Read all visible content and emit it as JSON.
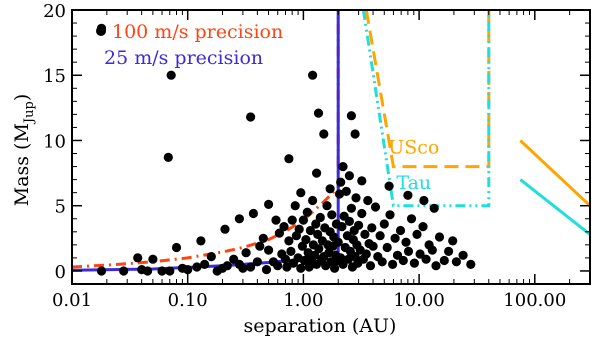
{
  "chart_data": {
    "type": "scatter",
    "xscale": "log",
    "xlabel": "separation (AU)",
    "ylabel_main": "Mass (M",
    "ylabel_sub": "Jup",
    "ylabel_close": ")",
    "xlim": [
      0.01,
      300
    ],
    "ylim": [
      -1,
      20
    ],
    "xticks": [
      0.01,
      0.1,
      1,
      10,
      100
    ],
    "xtick_labels": [
      "0.01",
      "0.10",
      "1.00",
      "10.00",
      "100.00"
    ],
    "yticks": [
      0,
      5,
      10,
      15,
      20
    ],
    "ytick_labels": [
      "0",
      "5",
      "10",
      "15",
      "20"
    ],
    "grid": false,
    "colors": {
      "points": "#000000",
      "rv100": "#ff4411",
      "rv25": "#3d2bd8",
      "usco": "#ffa500",
      "tau": "#22dddd"
    },
    "legend": [
      {
        "label": "100 m/s precision",
        "color": "#ff4411"
      },
      {
        "label": "25 m/s precision",
        "color": "#3d2bd8"
      }
    ],
    "annotations": [
      {
        "label": "USco",
        "x": 9.0,
        "y": 9.0,
        "color": "#ffa500"
      },
      {
        "label": "Tau",
        "x": 9.0,
        "y": 6.3,
        "color": "#22dddd"
      }
    ],
    "curves": [
      {
        "key": "rv100",
        "style": "dashdot",
        "width": 3,
        "points": [
          [
            0.01,
            0.3
          ],
          [
            0.02,
            0.45
          ],
          [
            0.05,
            0.7
          ],
          [
            0.1,
            1.0
          ],
          [
            0.2,
            1.45
          ],
          [
            0.3,
            1.8
          ],
          [
            0.5,
            2.4
          ],
          [
            0.7,
            3.05
          ],
          [
            1.0,
            3.9
          ],
          [
            1.5,
            5.3
          ],
          [
            2.0,
            6.4
          ],
          [
            2.0,
            20
          ]
        ]
      },
      {
        "key": "rv25",
        "style": "solid",
        "width": 3,
        "points": [
          [
            0.01,
            0.05
          ],
          [
            0.05,
            0.15
          ],
          [
            0.1,
            0.27
          ],
          [
            0.2,
            0.4
          ],
          [
            0.5,
            0.65
          ],
          [
            1.0,
            0.9
          ],
          [
            1.5,
            1.15
          ],
          [
            2.0,
            1.5
          ],
          [
            2.0,
            20
          ]
        ]
      },
      {
        "key": "usco",
        "style": "dashed",
        "width": 3,
        "points": [
          [
            3.5,
            20
          ],
          [
            6.0,
            8.0
          ],
          [
            40,
            8.0
          ],
          [
            40,
            20
          ]
        ]
      },
      {
        "key": "tau",
        "style": "dashdotdot",
        "width": 3,
        "points": [
          [
            3.3,
            20
          ],
          [
            6.0,
            5.0
          ],
          [
            40,
            5.0
          ],
          [
            40,
            20
          ]
        ]
      },
      {
        "key": "usco",
        "style": "solid",
        "width": 3,
        "points": [
          [
            75,
            10.0
          ],
          [
            300,
            5.0
          ]
        ]
      },
      {
        "key": "tau",
        "style": "solid",
        "width": 3,
        "points": [
          [
            75,
            7.0
          ],
          [
            300,
            2.8
          ]
        ]
      }
    ],
    "points": [
      [
        0.018,
        18.6
      ],
      [
        0.072,
        15.0
      ],
      [
        0.068,
        8.7
      ],
      [
        0.35,
        11.8
      ],
      [
        1.2,
        15.0
      ],
      [
        1.35,
        12.1
      ],
      [
        1.5,
        10.5
      ],
      [
        0.75,
        8.6
      ],
      [
        2.6,
        11.9
      ],
      [
        2.8,
        10.5
      ],
      [
        2.1,
        6.8
      ],
      [
        0.018,
        0.0
      ],
      [
        0.028,
        0.0
      ],
      [
        0.037,
        1.0
      ],
      [
        0.04,
        0.1
      ],
      [
        0.045,
        0.0
      ],
      [
        0.05,
        0.9
      ],
      [
        0.06,
        0.0
      ],
      [
        0.07,
        0.0
      ],
      [
        0.08,
        1.8
      ],
      [
        0.09,
        0.2
      ],
      [
        0.1,
        0.1
      ],
      [
        0.12,
        0.3
      ],
      [
        0.14,
        0.5
      ],
      [
        0.16,
        1.1
      ],
      [
        0.18,
        0.0
      ],
      [
        0.2,
        0.2
      ],
      [
        0.22,
        0.4
      ],
      [
        0.25,
        0.9
      ],
      [
        0.28,
        0.5
      ],
      [
        0.3,
        0.2
      ],
      [
        0.32,
        1.4
      ],
      [
        0.35,
        0.3
      ],
      [
        0.37,
        4.4
      ],
      [
        0.4,
        0.7
      ],
      [
        0.42,
        1.9
      ],
      [
        0.45,
        2.5
      ],
      [
        0.48,
        0.1
      ],
      [
        0.5,
        1.6
      ],
      [
        0.55,
        0.7
      ],
      [
        0.58,
        3.9
      ],
      [
        0.6,
        0.4
      ],
      [
        0.62,
        2.9
      ],
      [
        0.65,
        1.3
      ],
      [
        0.68,
        3.4
      ],
      [
        0.7,
        0.9
      ],
      [
        0.72,
        0.3
      ],
      [
        0.75,
        2.3
      ],
      [
        0.78,
        1.5
      ],
      [
        0.8,
        3.9
      ],
      [
        0.82,
        0.6
      ],
      [
        0.85,
        5.0
      ],
      [
        0.87,
        2.7
      ],
      [
        0.9,
        1.0
      ],
      [
        0.92,
        3.2
      ],
      [
        0.95,
        0.2
      ],
      [
        0.98,
        1.9
      ],
      [
        1.0,
        3.9
      ],
      [
        1.02,
        0.8
      ],
      [
        1.05,
        2.4
      ],
      [
        1.08,
        4.5
      ],
      [
        1.1,
        1.4
      ],
      [
        1.12,
        0.3
      ],
      [
        1.15,
        3.1
      ],
      [
        1.18,
        0.9
      ],
      [
        1.2,
        5.4
      ],
      [
        1.22,
        2.0
      ],
      [
        1.25,
        1.2
      ],
      [
        1.28,
        3.6
      ],
      [
        1.3,
        0.5
      ],
      [
        1.33,
        2.8
      ],
      [
        1.36,
        1.7
      ],
      [
        1.4,
        4.1
      ],
      [
        1.43,
        0.8
      ],
      [
        1.46,
        2.3
      ],
      [
        1.5,
        1.1
      ],
      [
        1.53,
        3.3
      ],
      [
        1.56,
        0.4
      ],
      [
        1.6,
        5.0
      ],
      [
        1.63,
        2.0
      ],
      [
        1.66,
        1.4
      ],
      [
        1.7,
        3.0
      ],
      [
        1.73,
        0.7
      ],
      [
        1.76,
        4.3
      ],
      [
        1.8,
        1.9
      ],
      [
        1.83,
        2.6
      ],
      [
        1.86,
        0.2
      ],
      [
        1.9,
        1.2
      ],
      [
        1.93,
        3.6
      ],
      [
        1.96,
        0.8
      ],
      [
        2.0,
        2.2
      ],
      [
        2.05,
        5.9
      ],
      [
        2.1,
        1.0
      ],
      [
        2.15,
        3.4
      ],
      [
        2.2,
        0.5
      ],
      [
        2.25,
        4.2
      ],
      [
        2.3,
        1.8
      ],
      [
        2.35,
        6.1
      ],
      [
        2.4,
        2.7
      ],
      [
        2.45,
        0.9
      ],
      [
        2.5,
        3.8
      ],
      [
        2.55,
        1.5
      ],
      [
        2.6,
        4.8
      ],
      [
        2.65,
        0.3
      ],
      [
        2.7,
        2.4
      ],
      [
        2.75,
        3.1
      ],
      [
        2.8,
        1.1
      ],
      [
        2.85,
        5.6
      ],
      [
        2.9,
        2.0
      ],
      [
        2.95,
        0.6
      ],
      [
        3.0,
        3.5
      ],
      [
        3.1,
        1.6
      ],
      [
        3.2,
        4.4
      ],
      [
        3.3,
        0.9
      ],
      [
        3.4,
        2.8
      ],
      [
        3.5,
        1.3
      ],
      [
        3.6,
        5.4
      ],
      [
        3.7,
        2.1
      ],
      [
        3.8,
        0.4
      ],
      [
        3.9,
        3.3
      ],
      [
        4.0,
        1.9
      ],
      [
        4.2,
        4.9
      ],
      [
        4.4,
        1.1
      ],
      [
        4.6,
        2.7
      ],
      [
        4.8,
        0.7
      ],
      [
        5.0,
        3.6
      ],
      [
        5.3,
        1.8
      ],
      [
        5.6,
        4.3
      ],
      [
        5.9,
        0.5
      ],
      [
        6.2,
        2.5
      ],
      [
        6.5,
        1.2
      ],
      [
        6.9,
        3.1
      ],
      [
        7.3,
        0.8
      ],
      [
        7.7,
        2.2
      ],
      [
        8.1,
        1.5
      ],
      [
        8.6,
        4.0
      ],
      [
        9.1,
        0.6
      ],
      [
        9.6,
        2.8
      ],
      [
        10.2,
        1.3
      ],
      [
        10.8,
        3.4
      ],
      [
        11.5,
        0.9
      ],
      [
        12.2,
        2.0
      ],
      [
        13.0,
        1.6
      ],
      [
        14.0,
        0.4
      ],
      [
        15.0,
        2.6
      ],
      [
        16.5,
        0.8
      ],
      [
        18.0,
        1.5
      ],
      [
        19.5,
        2.3
      ],
      [
        21.0,
        0.7
      ],
      [
        24.0,
        1.2
      ],
      [
        28.0,
        0.5
      ],
      [
        11.0,
        5.4
      ],
      [
        13.5,
        4.8
      ],
      [
        8.0,
        5.8
      ],
      [
        2.5,
        7.3
      ],
      [
        3.2,
        6.9
      ],
      [
        2.2,
        8.0
      ],
      [
        1.7,
        6.3
      ],
      [
        0.95,
        6.0
      ],
      [
        0.5,
        5.1
      ],
      [
        0.28,
        4.0
      ],
      [
        0.21,
        3.2
      ],
      [
        0.13,
        2.3
      ],
      [
        1.3,
        7.5
      ],
      [
        5.5,
        6.5
      ]
    ]
  }
}
